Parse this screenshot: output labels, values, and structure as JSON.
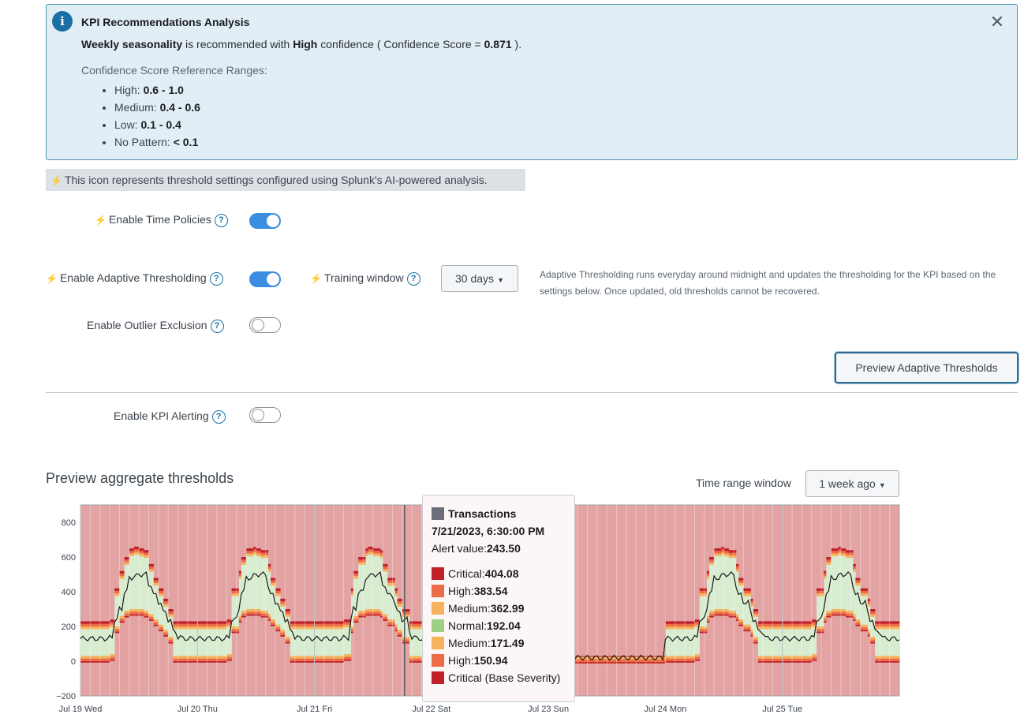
{
  "banner": {
    "title": "KPI Recommendations Analysis",
    "reco": {
      "seasonality": "Weekly seasonality",
      "text1": " is recommended with ",
      "confidence": "High",
      "text2": " confidence ( Confidence Score = ",
      "score": "0.871",
      "text3": " )."
    },
    "ref_title": "Confidence Score Reference Ranges:",
    "ranges": [
      {
        "label": "High: ",
        "value": "0.6 - 1.0"
      },
      {
        "label": "Medium: ",
        "value": "0.4 - 0.6"
      },
      {
        "label": "Low: ",
        "value": "0.1 - 0.4"
      },
      {
        "label": "No Pattern: ",
        "value": "< 0.1"
      }
    ],
    "close_glyph": "✕",
    "info_glyph": "i"
  },
  "ai_note": "This icon represents threshold settings configured using Splunk's AI-powered analysis.",
  "settings": {
    "time_policies": {
      "label": "Enable Time Policies",
      "on": true
    },
    "adaptive": {
      "label": "Enable Adaptive Thresholding",
      "on": true
    },
    "training_window": {
      "label": "Training window",
      "value": "30 days"
    },
    "outlier": {
      "label": "Enable Outlier Exclusion",
      "on": false
    },
    "kpi_alerting": {
      "label": "Enable KPI Alerting",
      "on": false
    },
    "adaptive_desc": "Adaptive Thresholding runs everyday around midnight and updates the thresholding for the KPI based on the settings below. Once updated, old thresholds cannot be recovered.",
    "help_glyph": "?",
    "bolt_glyph": "⚡"
  },
  "preview_button": "Preview Adaptive Thresholds",
  "preview_section": {
    "title": "Preview aggregate thresholds",
    "time_range_label": "Time range window",
    "time_range_value": "1 week ago"
  },
  "tooltip": {
    "series": "Transactions",
    "timestamp": "7/21/2023, 6:30:00 PM",
    "alert_label": "Alert value: ",
    "alert_value": "243.50",
    "items": [
      {
        "label": "Critical: ",
        "value": "404.08",
        "color": "#c0202a"
      },
      {
        "label": "High: ",
        "value": "383.54",
        "color": "#ec6c47"
      },
      {
        "label": "Medium: ",
        "value": "362.99",
        "color": "#f7b25d"
      },
      {
        "label": "Normal: ",
        "value": "192.04",
        "color": "#9dcf87"
      },
      {
        "label": "Medium: ",
        "value": "171.49",
        "color": "#f7b25d"
      },
      {
        "label": "High: ",
        "value": "150.94",
        "color": "#ec6c47"
      },
      {
        "label": "Critical (Base Severity)",
        "value": "",
        "color": "#c0202a"
      }
    ]
  },
  "chart_data": {
    "type": "area",
    "series_name": "Transactions",
    "ylim": [
      -200,
      900
    ],
    "yticks": [
      -200,
      0,
      200,
      400,
      600,
      800
    ],
    "xticks": [
      "Jul 19 Wed",
      "Jul 20 Thu",
      "Jul 21 Fri",
      "Jul 22 Sat",
      "Jul 23 Sun",
      "Jul 24 Mon",
      "Jul 25 Tue"
    ],
    "x_range_days": [
      0,
      7
    ],
    "colors": {
      "critical": "#e3a3a3",
      "high": "#ec6c47",
      "medium": "#f7b25d",
      "normal": "#d8ecd0",
      "critical_line": "#c0202a",
      "series_line": "#1a1a1a"
    },
    "hover_day": 2.77,
    "note": "Hourly alert values and threshold bands for one week, day-0 = Jul 19 00:00",
    "series": [
      {
        "name": "alert_value",
        "weekday_profile": [
          130,
          130,
          130,
          130,
          130,
          130,
          135,
          240,
          300,
          400,
          480,
          490,
          500,
          500,
          440,
          380,
          340,
          280,
          240,
          170,
          140,
          130,
          130,
          130
        ],
        "weekend_value": 20
      },
      {
        "name": "critical_upper",
        "weekday_profile": [
          230,
          230,
          230,
          230,
          230,
          230,
          240,
          420,
          520,
          600,
          650,
          660,
          650,
          640,
          560,
          480,
          420,
          360,
          300,
          230,
          230,
          230,
          230,
          230
        ],
        "weekend_value": 30
      },
      {
        "name": "normal_mid",
        "weekday_profile": [
          100,
          100,
          100,
          100,
          100,
          100,
          110,
          250,
          330,
          380,
          410,
          420,
          420,
          410,
          380,
          330,
          290,
          250,
          200,
          100,
          100,
          100,
          100,
          100
        ],
        "weekend_value": 15
      },
      {
        "name": "critical_lower",
        "weekday_profile": [
          0,
          0,
          0,
          0,
          0,
          0,
          10,
          170,
          230,
          260,
          270,
          270,
          270,
          260,
          240,
          210,
          180,
          150,
          110,
          0,
          0,
          0,
          0,
          0
        ],
        "weekend_value": -5
      }
    ]
  }
}
